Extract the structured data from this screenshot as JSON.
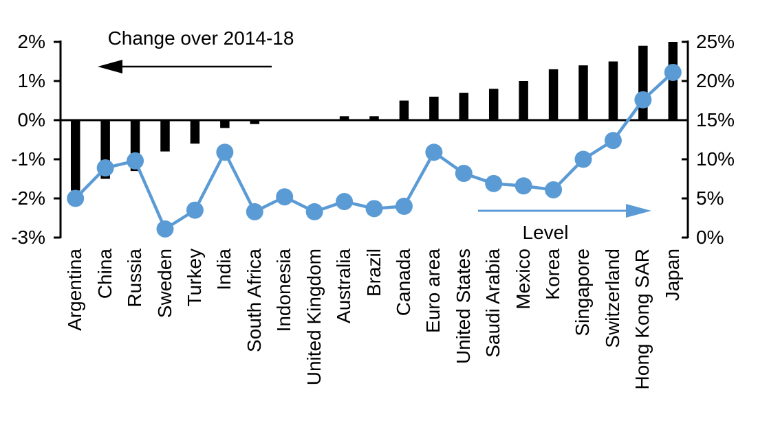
{
  "colors": {
    "bar": "#000000",
    "line": "#5B9BD5",
    "axis": "#000000",
    "text": "#000000",
    "background": "#FFFFFF"
  },
  "chart_data": {
    "type": "bar",
    "subtype": "dual-axis bar + line (markers)",
    "categories": [
      "Argentina",
      "China",
      "Russia",
      "Sweden",
      "Turkey",
      "India",
      "South Africa",
      "Indonesia",
      "United Kingdom",
      "Australia",
      "Brazil",
      "Canada",
      "Euro area",
      "United States",
      "Saudi Arabia",
      "Mexico",
      "Korea",
      "Singapore",
      "Switzerland",
      "Hong Kong SAR",
      "Japan"
    ],
    "series": [
      {
        "name": "Change over 2014-18",
        "type": "bar",
        "axis": "left",
        "color": "#000000",
        "values": [
          -1.8,
          -1.5,
          -1.3,
          -0.8,
          -0.6,
          -0.2,
          -0.1,
          0.0,
          0.0,
          0.1,
          0.1,
          0.5,
          0.6,
          0.7,
          0.8,
          1.0,
          1.3,
          1.4,
          1.5,
          1.9,
          2.0
        ]
      },
      {
        "name": "Level",
        "type": "line",
        "axis": "right",
        "color": "#5B9BD5",
        "values": [
          5.0,
          8.9,
          9.8,
          1.1,
          3.5,
          10.9,
          3.3,
          5.2,
          3.3,
          4.6,
          3.7,
          4.0,
          10.9,
          8.2,
          6.9,
          6.6,
          6.1,
          10.0,
          12.4,
          17.6,
          21.1
        ]
      }
    ],
    "left_axis": {
      "min": -3,
      "max": 2,
      "tick_labels": [
        "2%",
        "1%",
        "0%",
        "-1%",
        "-2%",
        "-3%"
      ],
      "tick_values": [
        2,
        1,
        0,
        -1,
        -2,
        -3
      ]
    },
    "right_axis": {
      "min": 0,
      "max": 25,
      "tick_labels": [
        "25%",
        "20%",
        "15%",
        "10%",
        "5%",
        "0%"
      ],
      "tick_values": [
        25,
        20,
        15,
        10,
        5,
        0
      ]
    },
    "grid": false,
    "legend_position": "in-plot annotations with arrows",
    "annotations": {
      "change": {
        "text": "Change over 2014-18",
        "arrow_direction": "left",
        "arrow_color": "#000000"
      },
      "level": {
        "text": "Level",
        "arrow_direction": "right",
        "arrow_color": "#5B9BD5"
      }
    }
  }
}
